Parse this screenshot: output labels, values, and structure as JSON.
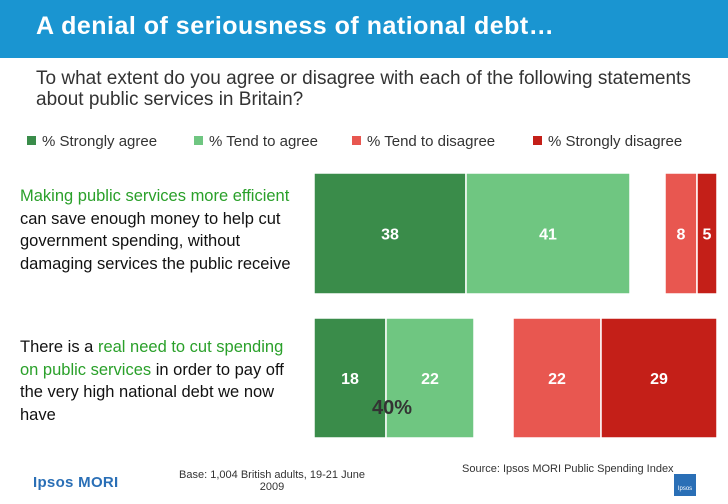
{
  "header": {
    "title": "A denial of seriousness of national debt…"
  },
  "question": "To what extent do you agree or disagree with each of the following statements about public services in Britain?",
  "legend": [
    {
      "label": "% Strongly agree",
      "color": "#3a8c4a"
    },
    {
      "label": "% Tend to agree",
      "color": "#6fc681"
    },
    {
      "label": "% Tend to disagree",
      "color": "#e85750"
    },
    {
      "label": "% Strongly disagree",
      "color": "#c41f18"
    }
  ],
  "statements": [
    {
      "highlight": "Making public services more efficient",
      "rest": " can save enough money to help cut government spending, without damaging services the public receive"
    },
    {
      "pre": "There is a ",
      "highlight": "real need to cut spending on public services",
      "rest": " in order to pay off the very high national debt we now have"
    }
  ],
  "chart_data": {
    "type": "bar",
    "orientation": "horizontal-diverging",
    "categories": [
      "Making public services more efficient can save enough money to help cut government spending, without damaging services the public receive",
      "There is a real need to cut spending on public services in order to pay off the very high national debt we now have"
    ],
    "series": [
      {
        "name": "% Strongly agree",
        "values": [
          38,
          18
        ]
      },
      {
        "name": "% Tend to agree",
        "values": [
          41,
          22
        ]
      },
      {
        "name": "% Tend to disagree",
        "values": [
          8,
          22
        ]
      },
      {
        "name": "% Strongly disagree",
        "values": [
          5,
          29
        ]
      }
    ],
    "annotations": [
      {
        "row": 1,
        "text": "40%"
      }
    ]
  },
  "footer": {
    "logo": "Ipsos MORI",
    "base": "Base: 1,004  British adults, 19-21 June 2009",
    "source": "Source: Ipsos MORI Public Spending Index",
    "corner_logo": "Ipsos"
  }
}
